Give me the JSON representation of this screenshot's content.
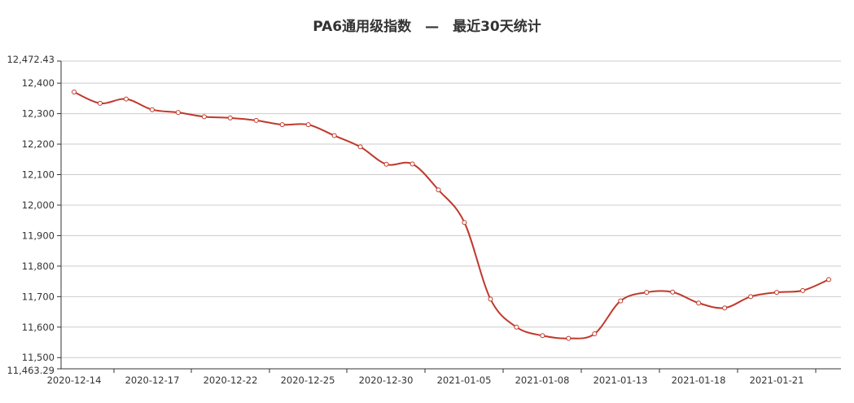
{
  "title": "PA6通用级指数　—　最近30天统计",
  "colors": {
    "line": "#c0392b",
    "grid": "#cccccc",
    "axis": "#333333",
    "text": "#333333"
  },
  "chart_data": {
    "type": "line",
    "title": "PA6通用级指数　—　最近30天统计",
    "xlabel": "",
    "ylabel": "",
    "ylim": [
      11463.29,
      12472.43
    ],
    "y_ticks": [
      "11,463.29",
      "11,500",
      "11,600",
      "11,700",
      "11,800",
      "11,900",
      "12,000",
      "12,100",
      "12,200",
      "12,300",
      "12,400",
      "12,472.43"
    ],
    "x_tick_labels": [
      "2020-12-14",
      "2020-12-17",
      "2020-12-22",
      "2020-12-25",
      "2020-12-30",
      "2021-01-05",
      "2021-01-08",
      "2021-01-13",
      "2021-01-18",
      "2021-01-21"
    ],
    "grid": true,
    "smooth": true,
    "categories": [
      "2020-12-14",
      "2020-12-15",
      "2020-12-16",
      "2020-12-17",
      "2020-12-18",
      "2020-12-21",
      "2020-12-22",
      "2020-12-23",
      "2020-12-24",
      "2020-12-25",
      "2020-12-28",
      "2020-12-29",
      "2020-12-30",
      "2020-12-31",
      "2021-01-04",
      "2021-01-05",
      "2021-01-06",
      "2021-01-07",
      "2021-01-08",
      "2021-01-11",
      "2021-01-12",
      "2021-01-13",
      "2021-01-14",
      "2021-01-15",
      "2021-01-18",
      "2021-01-19",
      "2021-01-20",
      "2021-01-21",
      "2021-01-22",
      "2021-01-25"
    ],
    "series": [
      {
        "values": [
          12371,
          12334,
          12348,
          12313,
          12304,
          12290,
          12286,
          12278,
          12264,
          12264,
          12228,
          12191,
          12134,
          12135,
          12050,
          11943,
          11692,
          11600,
          11572,
          11563,
          11578,
          11686,
          11714,
          11715,
          11679,
          11663,
          11700,
          11714,
          11720,
          11756
        ]
      }
    ]
  }
}
